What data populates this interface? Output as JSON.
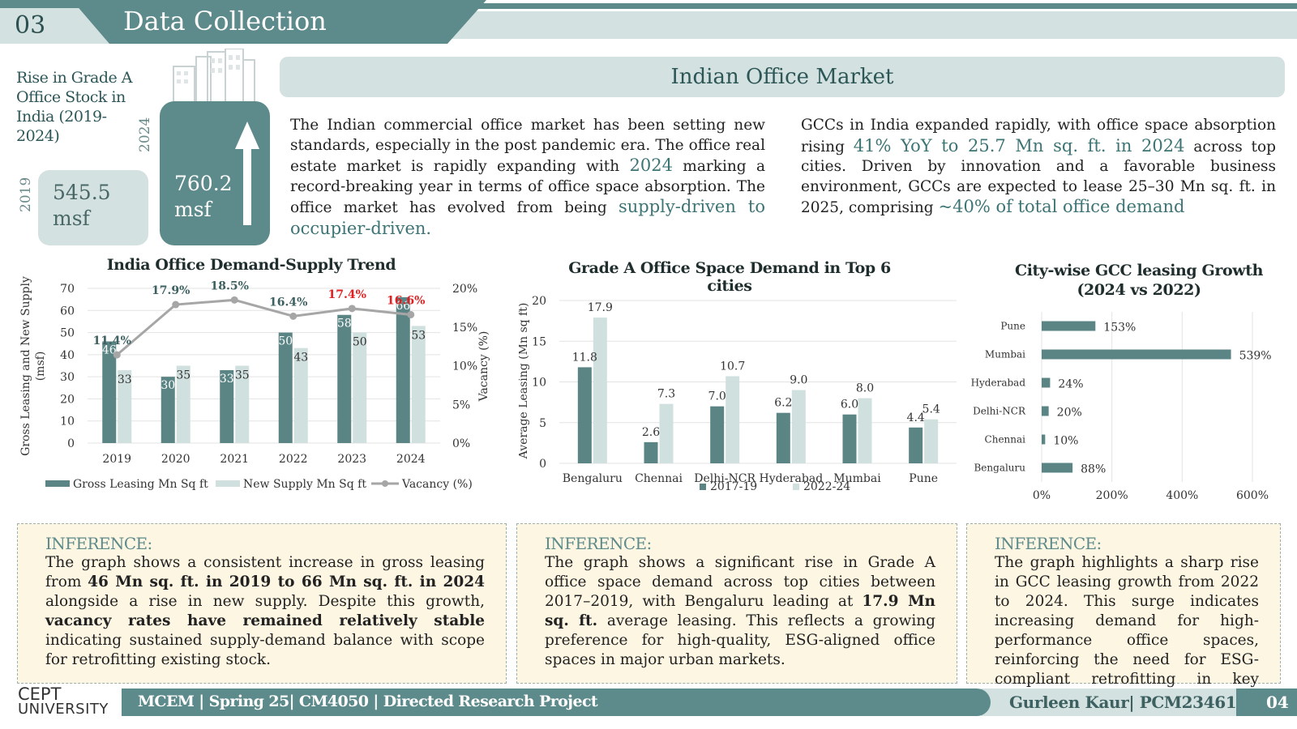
{
  "header": {
    "section_number": "03",
    "title": "Data Collection"
  },
  "stock": {
    "title": "Rise in Grade A Office Stock in India (2019-2024)",
    "year_a": "2019",
    "value_a": "545.5",
    "unit_a": "msf",
    "year_b": "2024",
    "value_b": "760.2",
    "unit_b": "msf",
    "icons": [
      "buildings-icon",
      "up-arrow-icon"
    ]
  },
  "market": {
    "title": "Indian Office Market",
    "para1_a": "The Indian commercial office market has been setting new standards, especially in the post pandemic era. The office real estate market is rapidly expanding with ",
    "para1_h1": "2024",
    "para1_b": " marking a record-breaking year in terms of office space absorption. The office market has evolved from being ",
    "para1_h2": "supply-driven to occupier-driven.",
    "para2_a": "GCCs in India expanded rapidly, with office space absorption rising ",
    "para2_h1": "41% YoY to 25.7 Mn sq. ft. in 2024",
    "para2_b": " across top cities. Driven by innovation and a favorable business environment, GCCs are expected to lease 25–30 Mn sq. ft. in 2025, comprising ",
    "para2_h2": "~40% of total office demand"
  },
  "colors": {
    "dark_teal": "#5d8a8a",
    "light_teal": "#d3e1e0",
    "bar_dark": "#5b8585",
    "bar_light": "#d0e0de",
    "red": "#e02020",
    "vacancy_line": "#a6a6a6"
  },
  "chart_data": [
    {
      "type": "bar",
      "title": "India Office Demand-Supply Trend",
      "categories": [
        "2019",
        "2020",
        "2021",
        "2022",
        "2023",
        "2024"
      ],
      "series": [
        {
          "name": "Gross Leasing Mn Sq ft",
          "values": [
            46,
            30,
            33,
            50,
            58,
            66
          ]
        },
        {
          "name": "New Supply Mn Sq ft",
          "values": [
            33,
            35,
            35,
            43,
            50,
            53
          ]
        },
        {
          "name": "Vacancy (%)",
          "type": "line",
          "axis": "secondary",
          "values": [
            11.4,
            17.9,
            18.5,
            16.4,
            17.4,
            16.6
          ],
          "labels": [
            "11.4%",
            "17.9%",
            "18.5%",
            "16.4%",
            "17.4%",
            "16.6%"
          ],
          "highlighted_labels": [
            "17.4%",
            "16.6%"
          ]
        }
      ],
      "ylabel": "Gross Leasing and New Supply (msf)",
      "y2label": "Vacancy (%)",
      "ylim": [
        0,
        70
      ],
      "yticks": [
        "0",
        "10",
        "20",
        "30",
        "40",
        "50",
        "60",
        "70"
      ],
      "y2lim": [
        0,
        20
      ],
      "y2ticks": [
        "0%",
        "5%",
        "10%",
        "15%",
        "20%"
      ],
      "grid": true,
      "legend": "bottom"
    },
    {
      "type": "bar",
      "title": "Grade A Office Space Demand in Top 6 cities",
      "categories": [
        "Bengaluru",
        "Chennai",
        "Delhi-NCR",
        "Hyderabad",
        "Mumbai",
        "Pune"
      ],
      "series": [
        {
          "name": "2017-19",
          "values": [
            11.8,
            2.6,
            7.0,
            6.2,
            6.0,
            4.4
          ],
          "labels": [
            "11.8",
            "2.6",
            "7.0",
            "6.2",
            "6.0",
            "4.4"
          ]
        },
        {
          "name": "2022-24",
          "values": [
            17.9,
            7.3,
            10.7,
            9.0,
            8.0,
            5.4
          ],
          "labels": [
            "17.9",
            "7.3",
            "10.7",
            "9.0",
            "8.0",
            "5.4"
          ]
        }
      ],
      "ylabel": "Average Leasing (Mn sq ft)",
      "ylim": [
        0,
        20
      ],
      "yticks": [
        "0",
        "5",
        "10",
        "15",
        "20"
      ],
      "grid": true,
      "legend": "bottom"
    },
    {
      "type": "bar",
      "orientation": "horizontal",
      "title": "City-wise GCC leasing Growth (2024 vs 2022)",
      "categories": [
        "Pune",
        "Mumbai",
        "Hyderabad",
        "Delhi-NCR",
        "Chennai",
        "Bengaluru"
      ],
      "values": [
        153,
        539,
        24,
        20,
        10,
        88
      ],
      "labels": [
        "153%",
        "539%",
        "24%",
        "20%",
        "10%",
        "88%"
      ],
      "xlim": [
        0,
        600
      ],
      "xticks": [
        "0%",
        "200%",
        "400%",
        "600%"
      ],
      "grid": true
    }
  ],
  "inference": [
    {
      "heading": "INFERENCE:",
      "t1": "The graph shows a consistent increase in gross leasing from ",
      "b1": "46 Mn sq. ft. in 2019 to 66 Mn sq. ft. in 2024",
      "t2": " alongside a rise in new supply. Despite this growth, ",
      "b2": "vacancy rates have remained relatively stable",
      "t3": " indicating sustained supply-demand balance with scope for retrofitting existing stock."
    },
    {
      "heading": "INFERENCE:",
      "t1": "The graph shows a significant rise in Grade A office space demand across top cities between 2017–2019, with Bengaluru leading at ",
      "b1": "17.9 Mn sq. ft.",
      "t2": " average leasing. This reflects a growing preference for high-quality, ESG-aligned office spaces in major urban markets."
    },
    {
      "heading": "INFERENCE:",
      "t1": "The graph highlights a sharp rise in GCC leasing growth from 2022 to 2024. This surge indicates increasing demand for high-performance office spaces, reinforcing the need for ESG-compliant retrofitting in key cities."
    }
  ],
  "footer": {
    "logo_line1": "CEPT",
    "logo_line2": "UNIVERSITY",
    "course": "MCEM | Spring 25| CM4050 | Directed Research Project",
    "author": "Gurleen Kaur| PCM23461",
    "page": "04"
  }
}
